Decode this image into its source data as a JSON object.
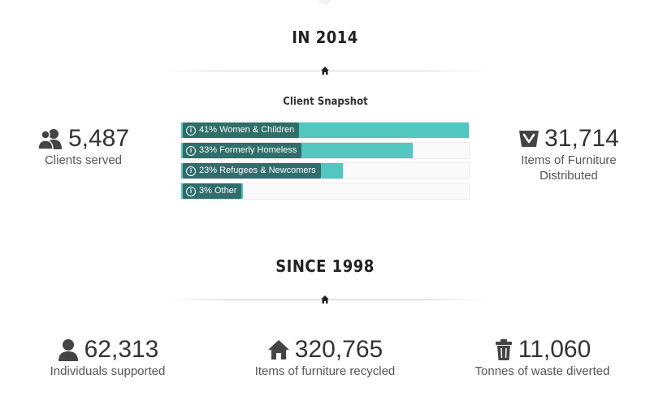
{
  "section_2014": {
    "heading": "IN 2014",
    "snapshot": {
      "title": "Client Snapshot",
      "bars": [
        {
          "label": "41% Women & Children",
          "percent": 41
        },
        {
          "label": "33% Formerly Homeless",
          "percent": 33
        },
        {
          "label": "23% Refugees & Newcomers",
          "percent": 23
        },
        {
          "label": "3% Other",
          "percent": 3
        }
      ]
    },
    "clients": {
      "icon": "users-icon",
      "value": "5,487",
      "label": "Clients served"
    },
    "furniture": {
      "icon": "basket-icon",
      "value": "31,714",
      "label_line1": "Items of Furniture",
      "label_line2": "Distributed"
    }
  },
  "section_1998": {
    "heading": "SINCE 1998",
    "individuals": {
      "icon": "user-icon",
      "value": "62,313",
      "label": "Individuals supported"
    },
    "recycled": {
      "icon": "home-icon",
      "value": "320,765",
      "label": "Items of furniture recycled"
    },
    "waste": {
      "icon": "trash-icon",
      "value": "11,060",
      "label": "Tonnes of waste diverted"
    }
  },
  "colors": {
    "accent": "#52c7bf",
    "label_bg": "#2f6e6a",
    "text": "#333333"
  }
}
